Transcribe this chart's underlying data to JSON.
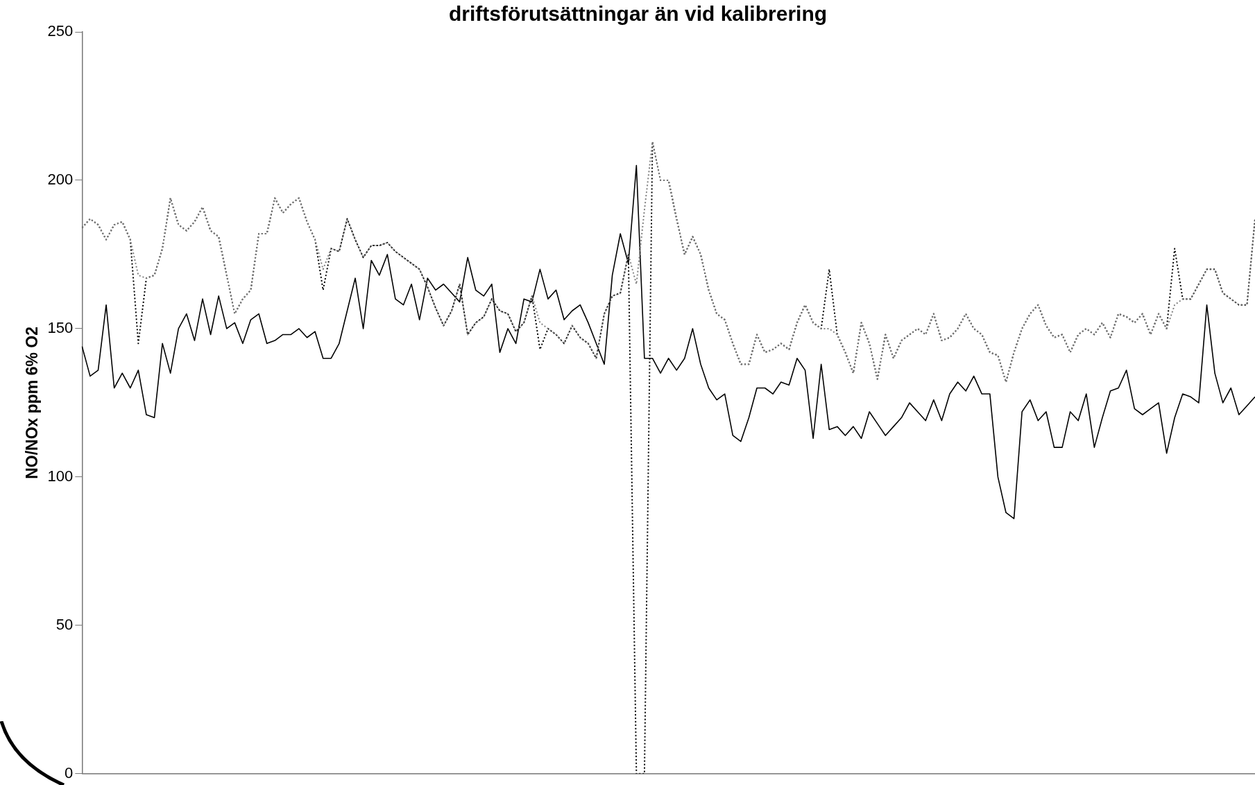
{
  "chart_data": {
    "type": "line",
    "title": "driftsförutsättningar än vid kalibrering",
    "ylabel": "NO/NOx ppm 6% O2",
    "categories": [
      null,
      null,
      null,
      null,
      null,
      null,
      null,
      null,
      null,
      null,
      null,
      null,
      null,
      null,
      null,
      null,
      null,
      null,
      null,
      null,
      null,
      null,
      null,
      null,
      null,
      null,
      null,
      null,
      null,
      null,
      null,
      null,
      null,
      null,
      null,
      null,
      null,
      null,
      null,
      null,
      null,
      null,
      null,
      null,
      null,
      null,
      null,
      null,
      null,
      null,
      null,
      null,
      null,
      null,
      null,
      null,
      null,
      null,
      null,
      null,
      null,
      null,
      null,
      null,
      null,
      null,
      null,
      null,
      null,
      null,
      null,
      null,
      null,
      null,
      null,
      null,
      null,
      null,
      null,
      null,
      null,
      null,
      null,
      null,
      null,
      null,
      null,
      null,
      null,
      null,
      null,
      null,
      null,
      null,
      null,
      null,
      null,
      null,
      null,
      null,
      null,
      null,
      null,
      null,
      null,
      null,
      null,
      null,
      null,
      null,
      null,
      null,
      null,
      null,
      null,
      null,
      null,
      null,
      null,
      null,
      null,
      null,
      null,
      null,
      null,
      null,
      null,
      null,
      null,
      null,
      null,
      null,
      null,
      null,
      null,
      null,
      null,
      null,
      null,
      null,
      null,
      null,
      null,
      null,
      null,
      null,
      null
    ],
    "series": [
      {
        "color": "#808080",
        "line_style": "dotted",
        "values": [
          184,
          187,
          185,
          180,
          185,
          186,
          180,
          168,
          167,
          168,
          177,
          194,
          185,
          183,
          186,
          191,
          183,
          181,
          168,
          155,
          160,
          163,
          182,
          182,
          194,
          189,
          192,
          194,
          186,
          180,
          170,
          177,
          176,
          187,
          180,
          174,
          178,
          178,
          179,
          176,
          174,
          172,
          170,
          164,
          157,
          151,
          156,
          165,
          148,
          152,
          154,
          160,
          156,
          155,
          149,
          152,
          161,
          152,
          150,
          148,
          145,
          151,
          147,
          145,
          140,
          155,
          161,
          162,
          175,
          165,
          190,
          213,
          200,
          200,
          187,
          175,
          181,
          175,
          163,
          155,
          153,
          145,
          138,
          138,
          148,
          142,
          143,
          145,
          143,
          152,
          158,
          152,
          150,
          150,
          148,
          142,
          135,
          152,
          145,
          133,
          148,
          140,
          146,
          148,
          150,
          148,
          155,
          146,
          147,
          150,
          155,
          150,
          148,
          142,
          141,
          132,
          142,
          150,
          155,
          158,
          151,
          147,
          148,
          142,
          148,
          150,
          148,
          152,
          147,
          155,
          154,
          152,
          155,
          148,
          155,
          150,
          158,
          160,
          160,
          165,
          170,
          170,
          162,
          160,
          158,
          158,
          187
        ]
      },
      {
        "color": "#000000",
        "line_style": "dotted",
        "values": [
          184,
          187,
          185,
          180,
          185,
          186,
          180,
          145,
          167,
          168,
          177,
          194,
          185,
          183,
          186,
          191,
          183,
          181,
          168,
          155,
          160,
          163,
          182,
          182,
          194,
          189,
          192,
          194,
          186,
          180,
          163,
          177,
          176,
          187,
          180,
          174,
          178,
          178,
          179,
          176,
          174,
          172,
          170,
          164,
          157,
          151,
          156,
          165,
          148,
          152,
          154,
          160,
          156,
          155,
          149,
          152,
          161,
          143,
          150,
          148,
          145,
          151,
          147,
          145,
          140,
          155,
          161,
          162,
          175,
          0,
          0,
          213,
          200,
          200,
          187,
          175,
          181,
          175,
          163,
          155,
          153,
          145,
          138,
          138,
          148,
          142,
          143,
          145,
          143,
          152,
          158,
          152,
          150,
          170,
          148,
          142,
          135,
          152,
          145,
          133,
          148,
          140,
          146,
          148,
          150,
          148,
          155,
          146,
          147,
          150,
          155,
          150,
          148,
          142,
          141,
          132,
          142,
          150,
          155,
          158,
          151,
          147,
          148,
          142,
          148,
          150,
          148,
          152,
          147,
          155,
          154,
          152,
          155,
          148,
          155,
          150,
          177,
          160,
          160,
          165,
          170,
          170,
          162,
          160,
          158,
          158,
          187
        ]
      },
      {
        "color": "#000000",
        "line_style": "solid",
        "values": [
          144,
          134,
          136,
          158,
          130,
          135,
          130,
          136,
          121,
          120,
          145,
          135,
          150,
          155,
          146,
          160,
          148,
          161,
          150,
          152,
          145,
          153,
          155,
          145,
          146,
          148,
          148,
          150,
          147,
          149,
          140,
          140,
          145,
          156,
          167,
          150,
          173,
          168,
          175,
          160,
          158,
          165,
          153,
          167,
          163,
          165,
          162,
          159,
          174,
          163,
          161,
          165,
          142,
          150,
          145,
          160,
          159,
          170,
          160,
          163,
          153,
          156,
          158,
          152,
          145,
          138,
          168,
          182,
          172,
          205,
          140,
          140,
          135,
          140,
          136,
          140,
          150,
          138,
          130,
          126,
          128,
          114,
          112,
          120,
          130,
          130,
          128,
          132,
          131,
          140,
          136,
          113,
          138,
          116,
          117,
          114,
          117,
          113,
          122,
          118,
          114,
          117,
          120,
          125,
          122,
          119,
          126,
          119,
          128,
          132,
          129,
          134,
          128,
          128,
          100,
          88,
          86,
          122,
          126,
          119,
          122,
          110,
          110,
          122,
          119,
          128,
          110,
          120,
          129,
          130,
          136,
          123,
          121,
          123,
          125,
          108,
          120,
          128,
          127,
          125,
          158,
          135,
          125,
          130,
          121,
          124,
          127
        ]
      }
    ],
    "ylim": [
      0,
      250
    ],
    "yticks": [
      0,
      50,
      100,
      150,
      200,
      250
    ],
    "grid": false,
    "legend": false,
    "marker": "none",
    "tick_labels": "y"
  }
}
